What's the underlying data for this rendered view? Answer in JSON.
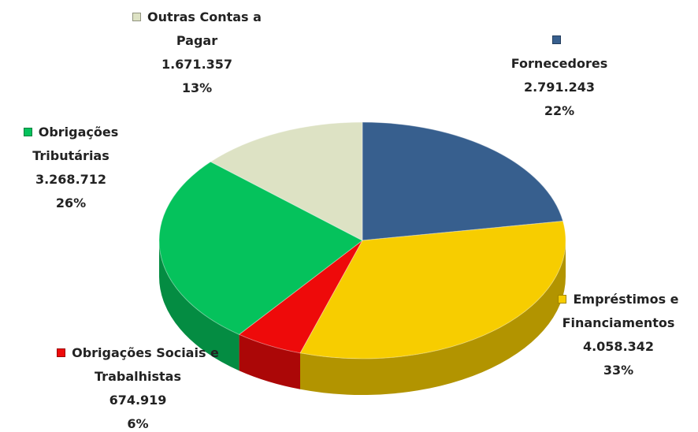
{
  "chart_data": {
    "type": "pie3d",
    "categories": [
      "Fornecedores",
      "Empréstimos e Financiamentos",
      "Obrigações Sociais e Trabalhistas",
      "Obrigações Tributárias",
      "Outras Contas a Pagar"
    ],
    "values": [
      2791243,
      4058342,
      674919,
      3268712,
      1671357
    ],
    "value_labels": [
      "2.791.243",
      "4.058.342",
      "674.919",
      "3.268.712",
      "1.671.357"
    ],
    "percent_labels": [
      "22%",
      "33%",
      "6%",
      "26%",
      "13%"
    ],
    "colors": [
      "#375f8e",
      "#f7cd00",
      "#ee0a0a",
      "#05c25c",
      "#dde2c4"
    ]
  }
}
